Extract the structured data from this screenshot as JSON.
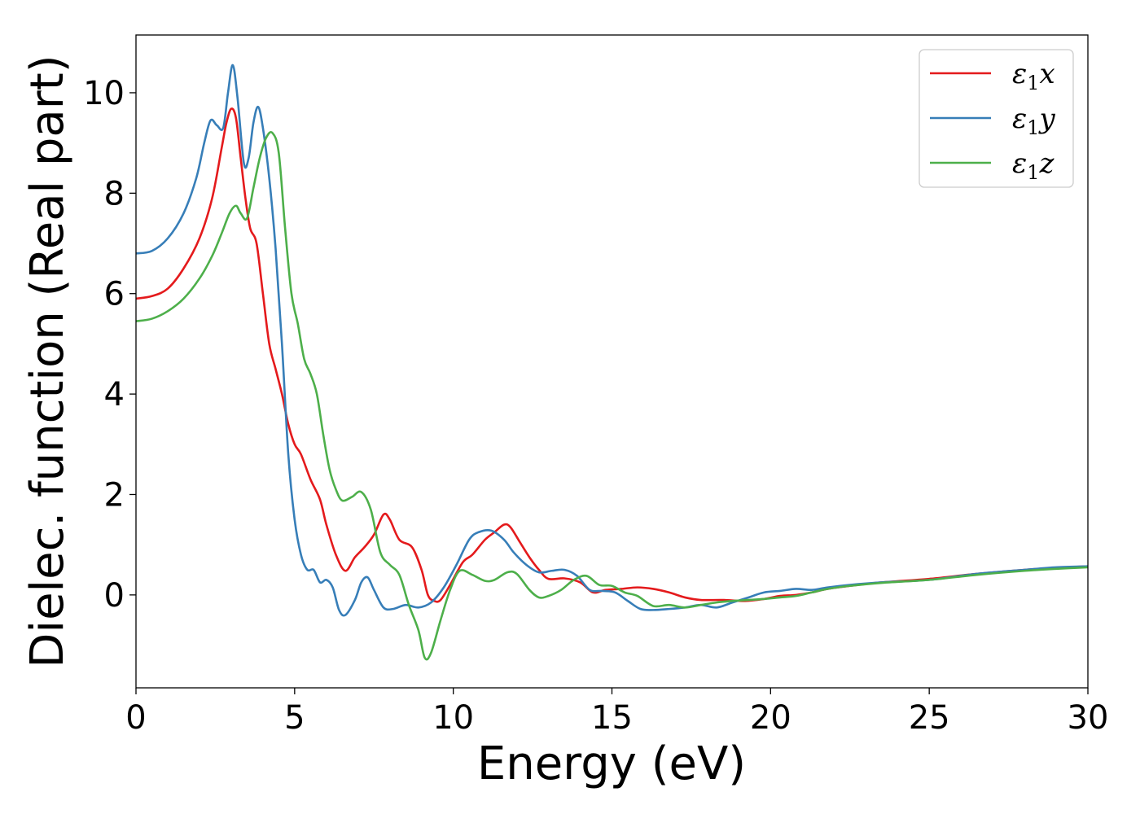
{
  "chart_data": {
    "type": "line",
    "title": "",
    "xlabel": "Energy (eV)",
    "ylabel": "Dielec. function (Real part)",
    "xlim": [
      0,
      30
    ],
    "ylim": [
      -1.85,
      11.15
    ],
    "xticks": [
      0,
      5,
      10,
      15,
      20,
      25,
      30
    ],
    "yticks": [
      0,
      2,
      4,
      6,
      8,
      10
    ],
    "grid": false,
    "legend_position": "top-right",
    "series": [
      {
        "name": "ε1x",
        "legend_main": "ε",
        "legend_sub": "1",
        "legend_tail": "x",
        "color": "#e41a1c",
        "points": [
          [
            0,
            5.9
          ],
          [
            0.5,
            5.95
          ],
          [
            1,
            6.1
          ],
          [
            1.5,
            6.5
          ],
          [
            2,
            7.1
          ],
          [
            2.4,
            7.9
          ],
          [
            2.7,
            8.9
          ],
          [
            2.85,
            9.4
          ],
          [
            3.0,
            9.68
          ],
          [
            3.15,
            9.5
          ],
          [
            3.3,
            8.7
          ],
          [
            3.45,
            7.9
          ],
          [
            3.6,
            7.3
          ],
          [
            3.8,
            7.0
          ],
          [
            4.0,
            6.0
          ],
          [
            4.2,
            5.0
          ],
          [
            4.4,
            4.5
          ],
          [
            4.6,
            4.0
          ],
          [
            4.8,
            3.4
          ],
          [
            5.0,
            3.0
          ],
          [
            5.2,
            2.8
          ],
          [
            5.5,
            2.3
          ],
          [
            5.8,
            1.9
          ],
          [
            6.0,
            1.4
          ],
          [
            6.3,
            0.8
          ],
          [
            6.6,
            0.48
          ],
          [
            6.9,
            0.75
          ],
          [
            7.2,
            0.95
          ],
          [
            7.5,
            1.2
          ],
          [
            7.8,
            1.6
          ],
          [
            8.0,
            1.5
          ],
          [
            8.3,
            1.1
          ],
          [
            8.7,
            0.95
          ],
          [
            9.0,
            0.5
          ],
          [
            9.2,
            0.0
          ],
          [
            9.4,
            -0.12
          ],
          [
            9.6,
            -0.1
          ],
          [
            9.9,
            0.2
          ],
          [
            10.3,
            0.65
          ],
          [
            10.6,
            0.8
          ],
          [
            11.0,
            1.1
          ],
          [
            11.3,
            1.25
          ],
          [
            11.6,
            1.4
          ],
          [
            11.8,
            1.35
          ],
          [
            12.1,
            1.05
          ],
          [
            12.4,
            0.75
          ],
          [
            12.7,
            0.5
          ],
          [
            13.0,
            0.32
          ],
          [
            13.5,
            0.33
          ],
          [
            14.0,
            0.25
          ],
          [
            14.4,
            0.05
          ],
          [
            14.8,
            0.1
          ],
          [
            15.3,
            0.12
          ],
          [
            15.8,
            0.15
          ],
          [
            16.3,
            0.12
          ],
          [
            16.8,
            0.05
          ],
          [
            17.3,
            -0.05
          ],
          [
            17.8,
            -0.1
          ],
          [
            18.5,
            -0.1
          ],
          [
            19.2,
            -0.12
          ],
          [
            19.8,
            -0.08
          ],
          [
            20.3,
            -0.02
          ],
          [
            20.8,
            0.0
          ],
          [
            21.3,
            0.05
          ],
          [
            21.8,
            0.12
          ],
          [
            22.5,
            0.18
          ],
          [
            23.5,
            0.25
          ],
          [
            25.0,
            0.32
          ],
          [
            26.5,
            0.42
          ],
          [
            28.0,
            0.5
          ],
          [
            29.0,
            0.54
          ],
          [
            30,
            0.57
          ]
        ]
      },
      {
        "name": "ε1y",
        "legend_main": "ε",
        "legend_sub": "1",
        "legend_tail": "y",
        "color": "#377eb8",
        "points": [
          [
            0,
            6.8
          ],
          [
            0.5,
            6.85
          ],
          [
            1,
            7.1
          ],
          [
            1.5,
            7.6
          ],
          [
            1.9,
            8.3
          ],
          [
            2.15,
            9.0
          ],
          [
            2.35,
            9.45
          ],
          [
            2.55,
            9.35
          ],
          [
            2.75,
            9.3
          ],
          [
            2.9,
            10.0
          ],
          [
            3.05,
            10.55
          ],
          [
            3.2,
            9.9
          ],
          [
            3.4,
            8.6
          ],
          [
            3.55,
            8.7
          ],
          [
            3.7,
            9.4
          ],
          [
            3.85,
            9.72
          ],
          [
            4.0,
            9.3
          ],
          [
            4.2,
            8.3
          ],
          [
            4.4,
            6.9
          ],
          [
            4.6,
            5.0
          ],
          [
            4.8,
            2.8
          ],
          [
            5.0,
            1.5
          ],
          [
            5.2,
            0.8
          ],
          [
            5.4,
            0.5
          ],
          [
            5.6,
            0.5
          ],
          [
            5.8,
            0.25
          ],
          [
            6.0,
            0.3
          ],
          [
            6.2,
            0.15
          ],
          [
            6.4,
            -0.3
          ],
          [
            6.6,
            -0.4
          ],
          [
            6.9,
            -0.1
          ],
          [
            7.1,
            0.25
          ],
          [
            7.3,
            0.35
          ],
          [
            7.5,
            0.1
          ],
          [
            7.8,
            -0.25
          ],
          [
            8.1,
            -0.28
          ],
          [
            8.5,
            -0.2
          ],
          [
            8.9,
            -0.25
          ],
          [
            9.3,
            -0.15
          ],
          [
            9.7,
            0.15
          ],
          [
            10.1,
            0.6
          ],
          [
            10.5,
            1.1
          ],
          [
            10.8,
            1.25
          ],
          [
            11.2,
            1.28
          ],
          [
            11.6,
            1.1
          ],
          [
            11.9,
            0.85
          ],
          [
            12.3,
            0.6
          ],
          [
            12.7,
            0.45
          ],
          [
            13.1,
            0.48
          ],
          [
            13.5,
            0.5
          ],
          [
            13.9,
            0.38
          ],
          [
            14.3,
            0.1
          ],
          [
            14.7,
            0.08
          ],
          [
            15.1,
            0.05
          ],
          [
            15.5,
            -0.12
          ],
          [
            15.9,
            -0.28
          ],
          [
            16.3,
            -0.3
          ],
          [
            16.8,
            -0.28
          ],
          [
            17.3,
            -0.25
          ],
          [
            17.8,
            -0.2
          ],
          [
            18.3,
            -0.25
          ],
          [
            18.8,
            -0.15
          ],
          [
            19.3,
            -0.05
          ],
          [
            19.8,
            0.05
          ],
          [
            20.3,
            0.08
          ],
          [
            20.8,
            0.12
          ],
          [
            21.3,
            0.1
          ],
          [
            21.8,
            0.15
          ],
          [
            22.5,
            0.2
          ],
          [
            23.5,
            0.25
          ],
          [
            25.0,
            0.3
          ],
          [
            26.5,
            0.42
          ],
          [
            28.0,
            0.5
          ],
          [
            29.0,
            0.55
          ],
          [
            30,
            0.57
          ]
        ]
      },
      {
        "name": "ε1z",
        "legend_main": "ε",
        "legend_sub": "1",
        "legend_tail": "z",
        "color": "#4daf4a",
        "points": [
          [
            0,
            5.45
          ],
          [
            0.5,
            5.5
          ],
          [
            1,
            5.65
          ],
          [
            1.5,
            5.9
          ],
          [
            2,
            6.3
          ],
          [
            2.4,
            6.75
          ],
          [
            2.7,
            7.2
          ],
          [
            2.95,
            7.6
          ],
          [
            3.15,
            7.75
          ],
          [
            3.3,
            7.6
          ],
          [
            3.5,
            7.5
          ],
          [
            3.7,
            8.1
          ],
          [
            3.9,
            8.7
          ],
          [
            4.1,
            9.1
          ],
          [
            4.3,
            9.2
          ],
          [
            4.5,
            8.8
          ],
          [
            4.7,
            7.3
          ],
          [
            4.9,
            6.0
          ],
          [
            5.1,
            5.4
          ],
          [
            5.3,
            4.7
          ],
          [
            5.5,
            4.4
          ],
          [
            5.7,
            4.0
          ],
          [
            5.9,
            3.2
          ],
          [
            6.1,
            2.5
          ],
          [
            6.3,
            2.1
          ],
          [
            6.5,
            1.88
          ],
          [
            6.8,
            1.95
          ],
          [
            7.1,
            2.05
          ],
          [
            7.4,
            1.7
          ],
          [
            7.7,
            0.85
          ],
          [
            8.0,
            0.6
          ],
          [
            8.3,
            0.4
          ],
          [
            8.6,
            -0.2
          ],
          [
            8.9,
            -0.7
          ],
          [
            9.1,
            -1.25
          ],
          [
            9.3,
            -1.15
          ],
          [
            9.6,
            -0.5
          ],
          [
            9.9,
            0.1
          ],
          [
            10.2,
            0.48
          ],
          [
            10.6,
            0.4
          ],
          [
            11.0,
            0.28
          ],
          [
            11.3,
            0.3
          ],
          [
            11.7,
            0.45
          ],
          [
            12.0,
            0.42
          ],
          [
            12.4,
            0.1
          ],
          [
            12.7,
            -0.05
          ],
          [
            13.0,
            -0.02
          ],
          [
            13.4,
            0.1
          ],
          [
            13.8,
            0.3
          ],
          [
            14.2,
            0.38
          ],
          [
            14.6,
            0.2
          ],
          [
            15.0,
            0.18
          ],
          [
            15.4,
            0.05
          ],
          [
            15.8,
            -0.02
          ],
          [
            16.3,
            -0.22
          ],
          [
            16.8,
            -0.2
          ],
          [
            17.3,
            -0.25
          ],
          [
            17.8,
            -0.2
          ],
          [
            18.3,
            -0.15
          ],
          [
            18.8,
            -0.12
          ],
          [
            19.3,
            -0.1
          ],
          [
            19.8,
            -0.08
          ],
          [
            20.3,
            -0.05
          ],
          [
            20.8,
            -0.02
          ],
          [
            21.3,
            0.05
          ],
          [
            21.8,
            0.12
          ],
          [
            22.5,
            0.18
          ],
          [
            23.5,
            0.24
          ],
          [
            25.0,
            0.3
          ],
          [
            26.5,
            0.4
          ],
          [
            28.0,
            0.48
          ],
          [
            29.0,
            0.52
          ],
          [
            30,
            0.55
          ]
        ]
      }
    ]
  }
}
